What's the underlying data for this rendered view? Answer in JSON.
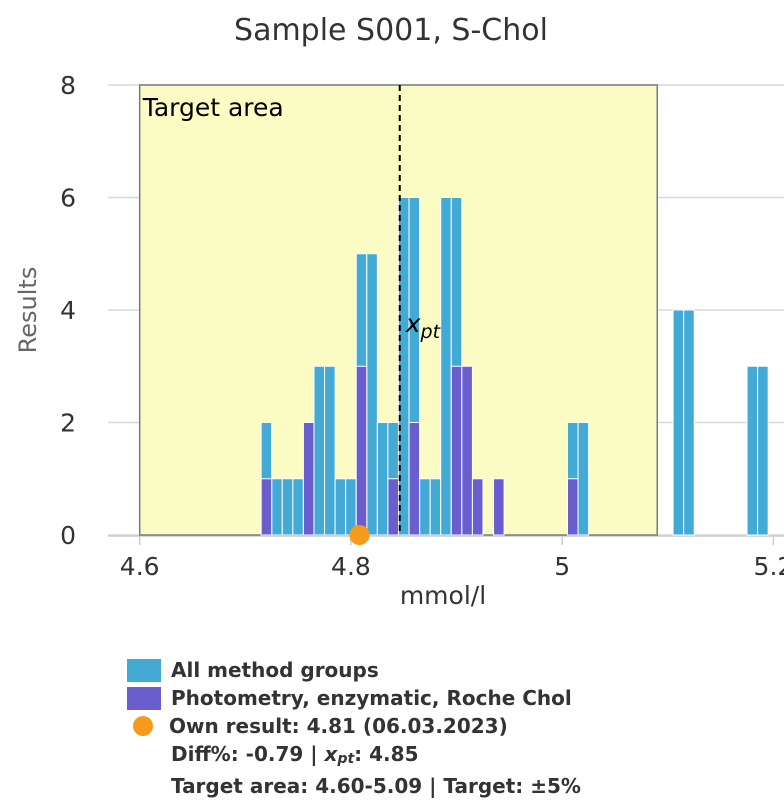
{
  "chart_data": {
    "type": "bar",
    "title": "Sample S001, S-Chol",
    "xlabel": "mmol/l",
    "ylabel": "Results",
    "xlim": [
      4.57,
      5.21
    ],
    "ylim": [
      0,
      8
    ],
    "x_ticks": [
      "4.6",
      "4.8",
      "5",
      "5.2"
    ],
    "x_tick_values": [
      4.6,
      4.8,
      5.0,
      5.2
    ],
    "y_ticks": [
      "0",
      "2",
      "4",
      "6",
      "8"
    ],
    "y_tick_values": [
      0,
      2,
      4,
      6,
      8
    ],
    "grid": "horizontal",
    "bin_width": 0.01,
    "target_area": {
      "label": "Target area",
      "from": 4.6,
      "to": 5.09,
      "color": "#fafcc4"
    },
    "xpt": {
      "value": 4.85,
      "label": "x",
      "sub": "pt"
    },
    "series": [
      {
        "name": "All method groups",
        "color": "#43aad5",
        "bins": [
          4.72,
          4.73,
          4.74,
          4.75,
          4.76,
          4.77,
          4.78,
          4.79,
          4.8,
          4.81,
          4.82,
          4.83,
          4.84,
          4.85,
          4.86,
          4.87,
          4.88,
          4.89,
          4.9,
          4.91,
          4.92,
          4.93,
          4.94,
          4.95,
          4.96,
          4.97,
          4.98,
          4.99,
          5.0,
          5.01,
          5.02,
          5.11,
          5.12,
          5.13,
          5.14,
          5.15,
          5.16,
          5.17,
          5.18,
          5.19
        ],
        "values": [
          2,
          1,
          1,
          1,
          1,
          3,
          3,
          1,
          1,
          5,
          5,
          2,
          2,
          6,
          6,
          1,
          1,
          6,
          6,
          1,
          1,
          0,
          0,
          0,
          0,
          0,
          0,
          0,
          0,
          2,
          2,
          4,
          4,
          0,
          0,
          0,
          0,
          0,
          3,
          3
        ]
      },
      {
        "name": "Photometry, enzymatic, Roche Chol",
        "color": "#6a5ecf",
        "bins": [
          4.72,
          4.76,
          4.81,
          4.84,
          4.86,
          4.9,
          4.91,
          4.92,
          4.94,
          5.01
        ],
        "values": [
          1,
          2,
          3,
          1,
          2,
          3,
          3,
          1,
          1,
          1
        ]
      }
    ],
    "own_result": {
      "value": 4.81,
      "color": "#f59a1a"
    }
  },
  "legend": {
    "all_groups": "All method groups",
    "method": "Photometry, enzymatic, Roche Chol",
    "own_result": "Own result: 4.81 (06.03.2023)",
    "diff_prefix": "Diff%: -0.79 | ",
    "xpt_x": "x",
    "xpt_sub": "pt",
    "xpt_value": ": 4.85",
    "target_line": "Target area: 4.60-5.09 | Target: ±5%"
  },
  "colors": {
    "all_groups": "#43aad5",
    "method": "#6a5ecf",
    "own_result": "#f59a1a",
    "target_area": "#fafcc4",
    "grid": "#d8d8d8"
  }
}
